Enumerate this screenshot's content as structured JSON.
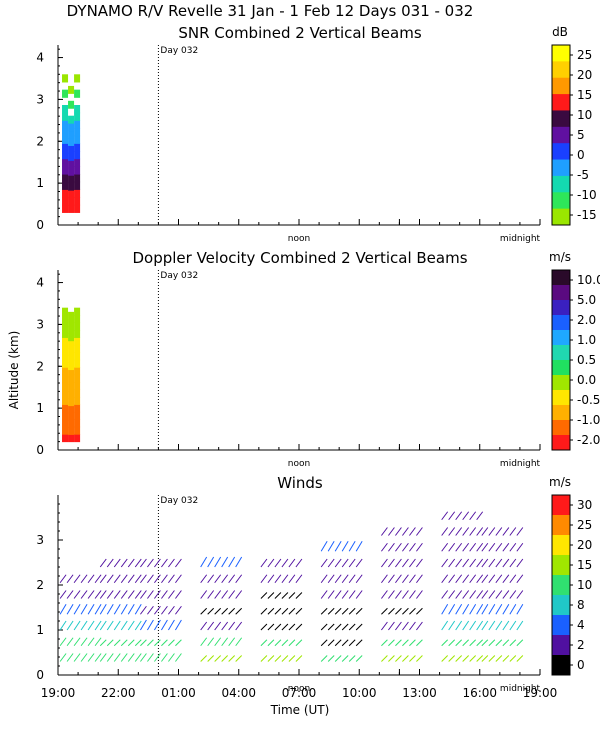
{
  "figure": {
    "title": "DYNAMO R/V Revelle  31 Jan -  1 Feb 12 Days 031 - 032",
    "ylabel": "Altitude (km)",
    "xlabel": "Time (UT)",
    "time_ticks": [
      "19:00",
      "22:00",
      "01:00",
      "04:00",
      "07:00",
      "10:00",
      "13:00",
      "16:00",
      "19:00"
    ],
    "day_marker": "Day 032",
    "noon_label": "noon",
    "midnight_label": "midnight"
  },
  "chart_data": [
    {
      "type": "heatmap",
      "title": "SNR Combined 2 Vertical Beams",
      "xlabel": "",
      "ylabel": "Altitude (km)",
      "xlim": [
        0,
        24
      ],
      "ylim": [
        0,
        4.3
      ],
      "yticks": [
        0,
        1,
        2,
        3,
        4
      ],
      "units": "dB",
      "colorbar": {
        "units": "dB",
        "labels": [
          "25",
          "20",
          "15",
          "10",
          "5",
          "0",
          "-5",
          "-10",
          "-15"
        ],
        "colors": [
          "#ffff00",
          "#ffd000",
          "#ff9900",
          "#ff1a1a",
          "#3a0a40",
          "#6010a0",
          "#1a40ff",
          "#1f9fff",
          "#14d9b0",
          "#2ee65a",
          "#9ae600"
        ]
      },
      "cells": [
        {
          "t": 0.2,
          "alt": [
            0.3,
            3.6
          ],
          "value": 0
        },
        {
          "t": 0.5,
          "alt": [
            0.3,
            3.5
          ],
          "value": -5
        },
        {
          "t": 0.8,
          "alt": [
            0.3,
            3.6
          ],
          "value": -10
        }
      ]
    },
    {
      "type": "heatmap",
      "title": "Doppler Velocity Combined 2 Vertical Beams",
      "xlabel": "",
      "ylabel": "Altitude (km)",
      "xlim": [
        0,
        24
      ],
      "ylim": [
        0,
        4.3
      ],
      "yticks": [
        0,
        1,
        2,
        3,
        4
      ],
      "units": "m/s",
      "colorbar": {
        "units": "m/s",
        "labels": [
          "10.0",
          "5.0",
          "2.0",
          "1.0",
          "0.5",
          "0.0",
          "-0.5",
          "-1.0",
          "-2.0"
        ],
        "colors": [
          "#2a0a2a",
          "#5a0a80",
          "#3a20c0",
          "#1a60ff",
          "#1fa8ff",
          "#20d8b0",
          "#20e060",
          "#a0e600",
          "#ffe600",
          "#ffb000",
          "#ff6a00",
          "#ff1a1a"
        ]
      },
      "cells": [
        {
          "t": 0.2,
          "alt": [
            0.2,
            3.4
          ],
          "value": -1.0
        },
        {
          "t": 0.5,
          "alt": [
            0.2,
            3.3
          ],
          "value": -0.5
        },
        {
          "t": 0.8,
          "alt": [
            0.2,
            3.4
          ],
          "value": -0.5
        }
      ]
    },
    {
      "type": "scatter",
      "title": "Winds",
      "xlabel": "Time (UT)",
      "ylabel": "",
      "xlim": [
        0,
        24
      ],
      "ylim": [
        0,
        4
      ],
      "yticks": [
        0,
        1,
        2,
        3
      ],
      "units": "m/s",
      "colorbar": {
        "units": "m/s",
        "labels": [
          "30",
          "25",
          "20",
          "15",
          "10",
          "8",
          "4",
          "2",
          "0"
        ],
        "colors": [
          "#ff1a1a",
          "#ff8a00",
          "#ffe600",
          "#a0e600",
          "#30e070",
          "#20c8c8",
          "#1a60ff",
          "#5010a0",
          "#000000"
        ]
      },
      "profiles": [
        {
          "t": 1.0,
          "speeds": [
            12,
            12,
            8,
            4,
            2,
            2
          ]
        },
        {
          "t": 3.0,
          "speeds": [
            12,
            10,
            8,
            4,
            2,
            2,
            2
          ]
        },
        {
          "t": 5.0,
          "speeds": [
            12,
            10,
            4,
            2,
            2,
            2,
            2
          ]
        },
        {
          "t": 8.0,
          "speeds": [
            15,
            12,
            2,
            0,
            2,
            2,
            4
          ]
        },
        {
          "t": 11.0,
          "speeds": [
            15,
            10,
            0,
            0,
            0,
            2,
            2
          ]
        },
        {
          "t": 14.0,
          "speeds": [
            10,
            0,
            0,
            0,
            2,
            2,
            2,
            4
          ]
        },
        {
          "t": 17.0,
          "speeds": [
            15,
            10,
            2,
            0,
            2,
            2,
            2,
            2,
            2
          ]
        },
        {
          "t": 20.0,
          "speeds": [
            15,
            10,
            8,
            4,
            2,
            2,
            2,
            2,
            2,
            2
          ]
        },
        {
          "t": 22.0,
          "speeds": [
            15,
            10,
            8,
            4,
            2,
            2,
            2,
            2,
            2
          ]
        }
      ]
    }
  ]
}
